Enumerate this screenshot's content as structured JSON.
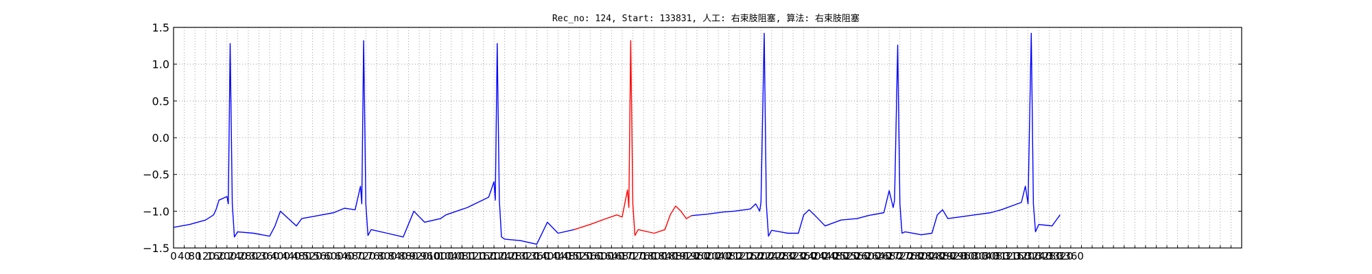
{
  "chart_data": {
    "type": "line",
    "title": "Rec_no: 124, Start: 133831, 人工: 右束肢阻塞, 算法: 右束肢阻塞",
    "xlabel": "",
    "ylabel": "",
    "xlim": [
      0,
      4000
    ],
    "ylim": [
      -1.5,
      1.5
    ],
    "yticks": [
      -1.5,
      -1.0,
      -0.5,
      0.0,
      0.5,
      1.0,
      1.5
    ],
    "ytick_labels": [
      "−1.5",
      "−1.0",
      "−0.5",
      "0.0",
      "0.5",
      "1.0",
      "1.5"
    ],
    "xticks_step": 40,
    "grid": true,
    "colors": {
      "normal": "#0000ff",
      "highlight": "#ff0000",
      "axis": "#000000",
      "grid": "#888888"
    },
    "series": [
      {
        "color": "#0000ff",
        "segment": "before",
        "x": [
          0,
          60,
          120,
          150,
          160,
          170,
          200,
          205,
          212,
          220,
          228,
          240,
          300,
          360,
          380,
          400,
          430,
          460,
          480,
          540,
          600,
          640,
          680,
          700,
          705,
          712,
          720,
          728,
          740,
          800,
          860,
          900,
          940,
          1000,
          1020,
          1060,
          1100,
          1180,
          1200,
          1205,
          1212,
          1220,
          1228,
          1240,
          1300,
          1360,
          1400,
          1440,
          1500
        ],
        "y": [
          -1.22,
          -1.18,
          -1.12,
          -1.05,
          -0.97,
          -0.85,
          -0.8,
          -0.9,
          1.28,
          -0.9,
          -1.35,
          -1.28,
          -1.3,
          -1.34,
          -1.2,
          -1.0,
          -1.1,
          -1.2,
          -1.1,
          -1.06,
          -1.02,
          -0.96,
          -0.98,
          -0.66,
          -0.9,
          1.32,
          -0.9,
          -1.33,
          -1.25,
          -1.3,
          -1.35,
          -1.0,
          -1.15,
          -1.1,
          -1.05,
          -1.0,
          -0.95,
          -0.81,
          -0.6,
          -0.85,
          1.28,
          -0.85,
          -1.35,
          -1.38,
          -1.4,
          -1.45,
          -1.15,
          -1.3,
          -1.25
        ]
      },
      {
        "color": "#ff0000",
        "segment": "highlight",
        "x": [
          1500,
          1560,
          1620,
          1660,
          1680,
          1700,
          1705,
          1712,
          1720,
          1728,
          1740,
          1800,
          1840,
          1860,
          1880,
          1900,
          1920,
          1940
        ],
        "y": [
          -1.25,
          -1.18,
          -1.1,
          -1.05,
          -1.08,
          -0.71,
          -0.95,
          1.32,
          -0.9,
          -1.33,
          -1.25,
          -1.3,
          -1.25,
          -1.05,
          -0.93,
          -1.0,
          -1.1,
          -1.06
        ]
      },
      {
        "color": "#0000ff",
        "segment": "after",
        "x": [
          1940,
          2000,
          2060,
          2100,
          2160,
          2180,
          2195,
          2200,
          2212,
          2220,
          2228,
          2240,
          2300,
          2340,
          2360,
          2380,
          2400,
          2440,
          2500,
          2560,
          2600,
          2660,
          2680,
          2695,
          2700,
          2712,
          2720,
          2728,
          2740,
          2800,
          2840,
          2860,
          2880,
          2900,
          2940,
          3000,
          3060,
          3100,
          3160,
          3175,
          3190,
          3200,
          3212,
          3220,
          3228,
          3240,
          3290,
          3300,
          3320
        ],
        "y": [
          -1.06,
          -1.04,
          -1.01,
          -1.0,
          -0.97,
          -0.9,
          -1.0,
          -0.88,
          1.42,
          -0.9,
          -1.34,
          -1.26,
          -1.3,
          -1.3,
          -1.05,
          -0.98,
          -1.05,
          -1.2,
          -1.12,
          -1.1,
          -1.06,
          -1.02,
          -0.72,
          -0.95,
          -0.85,
          1.26,
          -0.9,
          -1.3,
          -1.28,
          -1.32,
          -1.3,
          -1.05,
          -0.98,
          -1.1,
          -1.08,
          -1.05,
          -1.02,
          -0.98,
          -0.9,
          -0.88,
          -0.66,
          -0.9,
          1.42,
          -0.9,
          -1.28,
          -1.18,
          -1.2,
          -1.15,
          -1.05
        ]
      }
    ]
  }
}
